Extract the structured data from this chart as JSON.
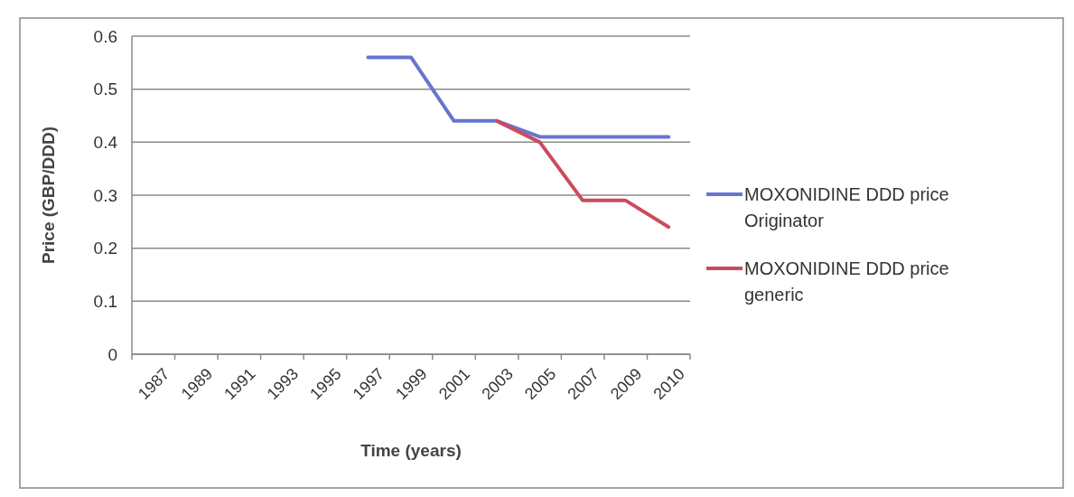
{
  "chart_data": {
    "type": "line",
    "xlabel": "Time (years)",
    "ylabel": "Price (GBP/DDD)",
    "categories": [
      "1987",
      "1989",
      "1991",
      "1993",
      "1995",
      "1997",
      "1999",
      "2001",
      "2003",
      "2005",
      "2007",
      "2009",
      "2010"
    ],
    "series": [
      {
        "name": "MOXONIDINE DDD price Originator",
        "color": "#6874d0",
        "values": [
          null,
          null,
          null,
          null,
          null,
          0.56,
          0.56,
          0.44,
          0.44,
          0.41,
          0.41,
          0.41,
          0.41
        ]
      },
      {
        "name": "MOXONIDINE DDD price generic",
        "color": "#cc4a5e",
        "values": [
          null,
          null,
          null,
          null,
          null,
          null,
          null,
          null,
          0.44,
          0.4,
          0.29,
          0.29,
          0.24
        ]
      }
    ],
    "ylim": [
      0,
      0.6
    ],
    "yticks": [
      0,
      0.1,
      0.2,
      0.3,
      0.4,
      0.5,
      0.6
    ],
    "grid": "y",
    "legend": "right",
    "marker": "none",
    "line_style": "solid"
  }
}
